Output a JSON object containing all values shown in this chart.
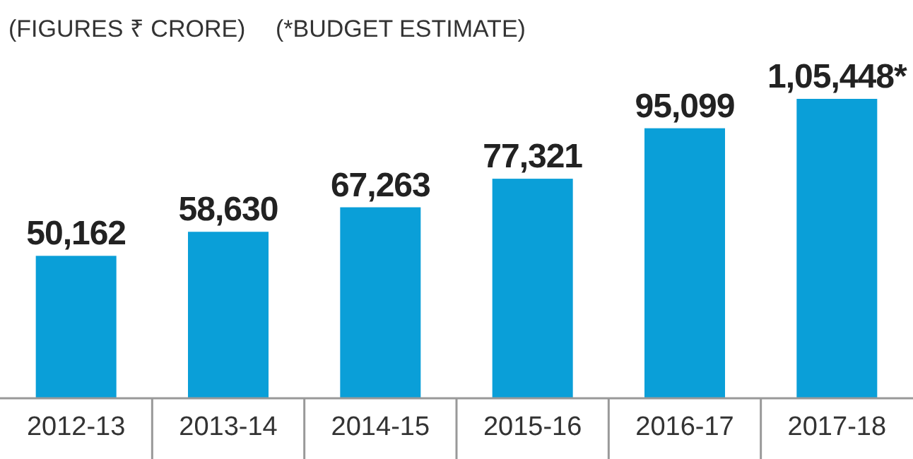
{
  "chart_data": {
    "type": "bar",
    "title": "(FIGURES ₹ CRORE)",
    "subtitle": "(*BUDGET ESTIMATE)",
    "categories": [
      "2012-13",
      "2013-14",
      "2014-15",
      "2015-16",
      "2016-17",
      "2017-18"
    ],
    "values": [
      50162,
      58630,
      67263,
      77321,
      95099,
      105448
    ],
    "value_labels": [
      "50,162",
      "58,630",
      "67,263",
      "77,321",
      "95,099",
      "1,05,448*"
    ],
    "color": "#0a9fd8"
  }
}
